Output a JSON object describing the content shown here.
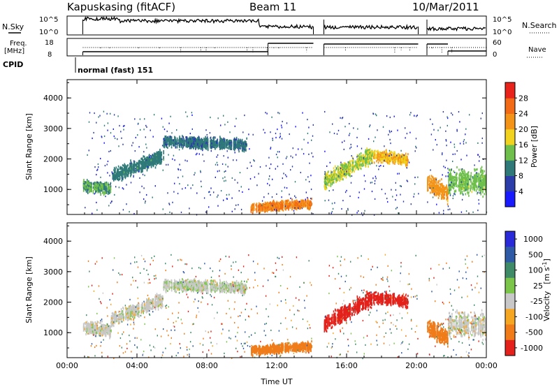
{
  "header": {
    "station": "Kapuskasing (fitACF)",
    "beam": "Beam 11",
    "date": "10/Mar/2011"
  },
  "top_panel": {
    "nsky_label": "N.Sky",
    "nsearch_label": "N.Search",
    "left_ticks": [
      "10^5",
      "10^0"
    ],
    "right_ticks": [
      "10^5",
      "10^0"
    ]
  },
  "freq_panel": {
    "freq_label": "Freq.",
    "freq_unit": "[MHz]",
    "nave_label": "Nave",
    "left_ticks": [
      "18",
      "8"
    ],
    "right_ticks": [
      "60",
      "0"
    ]
  },
  "cpid": {
    "label": "CPID",
    "mode": "normal (fast) 151"
  },
  "colors": {
    "power_scale": [
      "#1a1aff",
      "#2c3ca8",
      "#2f7a78",
      "#6ebf4b",
      "#f1d21f",
      "#f39418",
      "#f26a16",
      "#e8231b"
    ],
    "velocity_scale": [
      "#2a2ad8",
      "#2f5aa6",
      "#3f8a67",
      "#7cc54b",
      "#c8c8c8",
      "#f5a623",
      "#ef7c19",
      "#e3221b"
    ]
  },
  "chart_data": [
    {
      "type": "heatmap",
      "title": "",
      "xlabel": "",
      "ylabel": "Slant Range [km]",
      "x_tick_labels": [
        "00:00",
        "04:00",
        "08:00",
        "12:00",
        "16:00",
        "20:00",
        "00:00"
      ],
      "y_tick_labels": [
        "1000",
        "2000",
        "3000",
        "4000"
      ],
      "xlim_hours": [
        0,
        24
      ],
      "ylim_km": [
        180,
        4600
      ],
      "colorbar": {
        "label": "Power [dB]",
        "tick_labels": [
          "4",
          "8",
          "12",
          "16",
          "20",
          "24",
          "28"
        ],
        "range": [
          0,
          32
        ]
      },
      "data_gaps_hours": [
        [
          14.1,
          14.7
        ],
        [
          20.1,
          20.6
        ]
      ],
      "scatter_regions": [
        {
          "t_start": 0.9,
          "t_end": 2.5,
          "range_center": 1100,
          "range_width": 250,
          "range_slope_per_hour": -50,
          "value": 12
        },
        {
          "t_start": 2.5,
          "t_end": 5.5,
          "range_center": 1400,
          "range_width": 300,
          "range_slope_per_hour": 230,
          "value": 10
        },
        {
          "t_start": 5.5,
          "t_end": 10.3,
          "range_center": 2550,
          "range_width": 250,
          "range_slope_per_hour": -20,
          "value": 9
        },
        {
          "t_start": 10.5,
          "t_end": 14.0,
          "range_center": 380,
          "range_width": 200,
          "range_slope_per_hour": 40,
          "value": 24
        },
        {
          "t_start": 14.7,
          "t_end": 17.5,
          "range_center": 1250,
          "range_width": 350,
          "range_slope_per_hour": 320,
          "value": 16
        },
        {
          "t_start": 17.5,
          "t_end": 19.5,
          "range_center": 2100,
          "range_width": 250,
          "range_slope_per_hour": -80,
          "value": 20
        },
        {
          "t_start": 20.6,
          "t_end": 21.8,
          "range_center": 1200,
          "range_width": 400,
          "range_slope_per_hour": -300,
          "value": 22
        },
        {
          "t_start": 21.8,
          "t_end": 24.0,
          "range_center": 1250,
          "range_width": 550,
          "range_slope_per_hour": 0,
          "value": 14
        }
      ]
    },
    {
      "type": "heatmap",
      "title": "",
      "xlabel": "Time UT",
      "ylabel": "Slant Range [km]",
      "x_tick_labels": [
        "00:00",
        "04:00",
        "08:00",
        "12:00",
        "16:00",
        "20:00",
        "00:00"
      ],
      "y_tick_labels": [
        "1000",
        "2000",
        "3000",
        "4000"
      ],
      "xlim_hours": [
        0,
        24
      ],
      "ylim_km": [
        180,
        4600
      ],
      "colorbar": {
        "label": "Velocity",
        "unit_base": "[m s",
        "unit_exp": "-1",
        "unit_close": "]",
        "tick_labels": [
          "1000",
          "500",
          "100",
          "25",
          "-25",
          "-100",
          "-500",
          "-1000"
        ]
      },
      "data_gaps_hours": [
        [
          14.1,
          14.7
        ],
        [
          20.1,
          20.6
        ]
      ],
      "scatter_regions": [
        {
          "t_start": 0.9,
          "t_end": 2.5,
          "range_center": 1150,
          "range_width": 300,
          "range_slope_per_hour": -60,
          "value": 0
        },
        {
          "t_start": 2.5,
          "t_end": 5.5,
          "range_center": 1400,
          "range_width": 300,
          "range_slope_per_hour": 230,
          "value": 0
        },
        {
          "t_start": 5.5,
          "t_end": 10.3,
          "range_center": 2550,
          "range_width": 250,
          "range_slope_per_hour": -20,
          "value": 10
        },
        {
          "t_start": 10.5,
          "t_end": 14.0,
          "range_center": 400,
          "range_width": 200,
          "range_slope_per_hour": 40,
          "value": -150
        },
        {
          "t_start": 14.7,
          "t_end": 17.5,
          "range_center": 1250,
          "range_width": 350,
          "range_slope_per_hour": 320,
          "value": -600
        },
        {
          "t_start": 17.5,
          "t_end": 19.5,
          "range_center": 2150,
          "range_width": 250,
          "range_slope_per_hour": -80,
          "value": -700
        },
        {
          "t_start": 20.6,
          "t_end": 21.8,
          "range_center": 1150,
          "range_width": 400,
          "range_slope_per_hour": -300,
          "value": -200
        },
        {
          "t_start": 21.8,
          "t_end": 24.0,
          "range_center": 1250,
          "range_width": 550,
          "range_slope_per_hour": 0,
          "value": 0
        }
      ]
    }
  ]
}
